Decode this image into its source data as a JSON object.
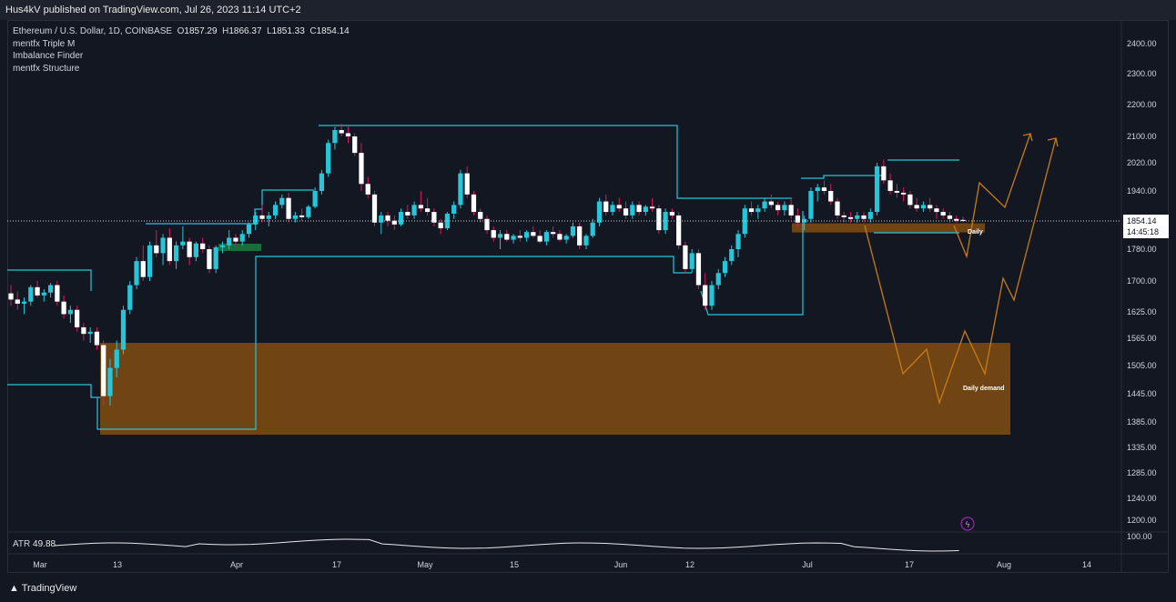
{
  "header": {
    "published": "Hus4kV published on TradingView.com, Jul 26, 2023 11:14 UTC+2"
  },
  "legend": {
    "symbol": "Ethereum / U.S. Dollar, 1D, COINBASE",
    "open_label": "O",
    "open": "1857.29",
    "high_label": "H",
    "high": "1866.37",
    "low_label": "L",
    "low": "1851.33",
    "close_label": "C",
    "close": "1854.14",
    "indicators": [
      "mentfx Triple M",
      "Imbalance Finder",
      "mentfx Structure"
    ]
  },
  "atr": {
    "label": "ATR",
    "value": "49.88"
  },
  "footer": {
    "brand": "TradingView"
  },
  "colors": {
    "bg": "#131722",
    "up": "#26c6da",
    "down": "#ffffff",
    "zone": "#7b4a12",
    "structure": "#26c6da",
    "projection": "#c77b16"
  },
  "chart_data": {
    "type": "candlestick",
    "y_ticks": [
      "2400.00",
      "2300.00",
      "2200.00",
      "2100.00",
      "2020.00",
      "1940.00",
      "1780.00",
      "1700.00",
      "1625.00",
      "1565.00",
      "1505.00",
      "1445.00",
      "1385.00",
      "1335.00",
      "1285.00",
      "1240.00",
      "1200.00"
    ],
    "atr_ticks": [
      "100.00"
    ],
    "x_ticks": [
      "Mar",
      "13",
      "Apr",
      "17",
      "May",
      "15",
      "Jun",
      "12",
      "Jul",
      "17",
      "Aug",
      "14"
    ],
    "last_price": "1854.14",
    "countdown": "14:45:18",
    "annotations": [
      "Daily",
      "Daily demand"
    ],
    "zones": [
      {
        "name": "Daily demand",
        "from": 1360,
        "to": 1555
      },
      {
        "name": "Daily",
        "from": 1824,
        "to": 1848
      }
    ],
    "candles_approx": [
      [
        1670,
        1690,
        1640,
        1655
      ],
      [
        1655,
        1675,
        1630,
        1645
      ],
      [
        1645,
        1660,
        1620,
        1650
      ],
      [
        1650,
        1690,
        1640,
        1685
      ],
      [
        1685,
        1700,
        1660,
        1665
      ],
      [
        1665,
        1680,
        1650,
        1672
      ],
      [
        1672,
        1695,
        1660,
        1690
      ],
      [
        1690,
        1700,
        1640,
        1650
      ],
      [
        1650,
        1665,
        1610,
        1620
      ],
      [
        1620,
        1640,
        1600,
        1630
      ],
      [
        1630,
        1640,
        1580,
        1590
      ],
      [
        1590,
        1600,
        1560,
        1575
      ],
      [
        1575,
        1590,
        1555,
        1580
      ],
      [
        1580,
        1590,
        1540,
        1550
      ],
      [
        1550,
        1560,
        1420,
        1440
      ],
      [
        1440,
        1520,
        1420,
        1500
      ],
      [
        1500,
        1560,
        1480,
        1540
      ],
      [
        1540,
        1640,
        1530,
        1630
      ],
      [
        1630,
        1700,
        1620,
        1690
      ],
      [
        1690,
        1760,
        1680,
        1750
      ],
      [
        1750,
        1790,
        1700,
        1710
      ],
      [
        1710,
        1800,
        1700,
        1790
      ],
      [
        1790,
        1830,
        1760,
        1770
      ],
      [
        1770,
        1820,
        1740,
        1810
      ],
      [
        1810,
        1835,
        1740,
        1750
      ],
      [
        1750,
        1800,
        1730,
        1790
      ],
      [
        1790,
        1840,
        1780,
        1800
      ],
      [
        1800,
        1810,
        1740,
        1760
      ],
      [
        1760,
        1800,
        1750,
        1795
      ],
      [
        1795,
        1810,
        1770,
        1780
      ],
      [
        1780,
        1790,
        1720,
        1730
      ],
      [
        1730,
        1790,
        1720,
        1785
      ],
      [
        1785,
        1800,
        1770,
        1790
      ],
      [
        1790,
        1830,
        1780,
        1810
      ],
      [
        1810,
        1820,
        1790,
        1800
      ],
      [
        1800,
        1830,
        1790,
        1820
      ],
      [
        1820,
        1850,
        1810,
        1845
      ],
      [
        1845,
        1880,
        1830,
        1870
      ],
      [
        1870,
        1900,
        1850,
        1860
      ],
      [
        1860,
        1880,
        1840,
        1870
      ],
      [
        1870,
        1910,
        1860,
        1900
      ],
      [
        1900,
        1930,
        1890,
        1920
      ],
      [
        1920,
        1935,
        1850,
        1860
      ],
      [
        1860,
        1880,
        1850,
        1870
      ],
      [
        1870,
        1890,
        1855,
        1865
      ],
      [
        1865,
        1900,
        1860,
        1895
      ],
      [
        1895,
        1950,
        1890,
        1940
      ],
      [
        1940,
        2000,
        1930,
        1990
      ],
      [
        1990,
        2090,
        1980,
        2080
      ],
      [
        2080,
        2130,
        2060,
        2120
      ],
      [
        2120,
        2140,
        2100,
        2110
      ],
      [
        2110,
        2130,
        2080,
        2100
      ],
      [
        2100,
        2110,
        2040,
        2050
      ],
      [
        2050,
        2080,
        1940,
        1960
      ],
      [
        1960,
        1980,
        1920,
        1930
      ],
      [
        1930,
        1940,
        1840,
        1850
      ],
      [
        1850,
        1880,
        1820,
        1870
      ],
      [
        1870,
        1880,
        1840,
        1855
      ],
      [
        1855,
        1870,
        1830,
        1845
      ],
      [
        1845,
        1890,
        1840,
        1880
      ],
      [
        1880,
        1900,
        1860,
        1870
      ],
      [
        1870,
        1910,
        1860,
        1900
      ],
      [
        1900,
        1940,
        1880,
        1890
      ],
      [
        1890,
        1920,
        1870,
        1880
      ],
      [
        1880,
        1890,
        1840,
        1850
      ],
      [
        1850,
        1860,
        1820,
        1835
      ],
      [
        1835,
        1880,
        1830,
        1875
      ],
      [
        1875,
        1910,
        1860,
        1900
      ],
      [
        1900,
        2000,
        1890,
        1990
      ],
      [
        1990,
        2010,
        1920,
        1930
      ],
      [
        1930,
        1940,
        1870,
        1880
      ],
      [
        1880,
        1890,
        1850,
        1860
      ],
      [
        1860,
        1870,
        1820,
        1830
      ],
      [
        1830,
        1840,
        1800,
        1810
      ],
      [
        1810,
        1830,
        1780,
        1820
      ],
      [
        1820,
        1830,
        1800,
        1805
      ],
      [
        1805,
        1820,
        1795,
        1815
      ],
      [
        1815,
        1830,
        1800,
        1810
      ],
      [
        1810,
        1830,
        1800,
        1825
      ],
      [
        1825,
        1840,
        1810,
        1815
      ],
      [
        1815,
        1830,
        1795,
        1800
      ],
      [
        1800,
        1830,
        1790,
        1825
      ],
      [
        1825,
        1840,
        1810,
        1820
      ],
      [
        1820,
        1830,
        1800,
        1805
      ],
      [
        1805,
        1820,
        1795,
        1815
      ],
      [
        1815,
        1850,
        1810,
        1840
      ],
      [
        1840,
        1850,
        1780,
        1790
      ],
      [
        1790,
        1820,
        1780,
        1815
      ],
      [
        1815,
        1860,
        1810,
        1850
      ],
      [
        1850,
        1920,
        1840,
        1910
      ],
      [
        1910,
        1930,
        1870,
        1880
      ],
      [
        1880,
        1910,
        1870,
        1900
      ],
      [
        1900,
        1920,
        1880,
        1890
      ],
      [
        1890,
        1910,
        1860,
        1870
      ],
      [
        1870,
        1910,
        1860,
        1900
      ],
      [
        1900,
        1910,
        1870,
        1880
      ],
      [
        1880,
        1900,
        1870,
        1895
      ],
      [
        1895,
        1920,
        1880,
        1890
      ],
      [
        1890,
        1900,
        1820,
        1830
      ],
      [
        1830,
        1890,
        1820,
        1880
      ],
      [
        1880,
        1890,
        1860,
        1870
      ],
      [
        1870,
        1880,
        1780,
        1790
      ],
      [
        1790,
        1800,
        1720,
        1730
      ],
      [
        1730,
        1780,
        1720,
        1770
      ],
      [
        1770,
        1780,
        1680,
        1690
      ],
      [
        1690,
        1720,
        1630,
        1640
      ],
      [
        1640,
        1700,
        1630,
        1690
      ],
      [
        1690,
        1730,
        1680,
        1720
      ],
      [
        1720,
        1760,
        1710,
        1750
      ],
      [
        1750,
        1790,
        1740,
        1780
      ],
      [
        1780,
        1830,
        1760,
        1820
      ],
      [
        1820,
        1900,
        1810,
        1890
      ],
      [
        1890,
        1910,
        1870,
        1880
      ],
      [
        1880,
        1900,
        1860,
        1890
      ],
      [
        1890,
        1920,
        1880,
        1910
      ],
      [
        1910,
        1930,
        1890,
        1900
      ],
      [
        1900,
        1910,
        1870,
        1885
      ],
      [
        1885,
        1910,
        1870,
        1900
      ],
      [
        1900,
        1920,
        1860,
        1870
      ],
      [
        1870,
        1890,
        1840,
        1850
      ],
      [
        1850,
        1870,
        1830,
        1860
      ],
      [
        1860,
        1950,
        1850,
        1940
      ],
      [
        1940,
        1960,
        1910,
        1950
      ],
      [
        1950,
        1970,
        1930,
        1940
      ],
      [
        1940,
        1960,
        1900,
        1910
      ],
      [
        1910,
        1920,
        1860,
        1870
      ],
      [
        1870,
        1880,
        1850,
        1865
      ],
      [
        1865,
        1880,
        1850,
        1860
      ],
      [
        1860,
        1880,
        1850,
        1870
      ],
      [
        1870,
        1880,
        1850,
        1860
      ],
      [
        1860,
        1890,
        1850,
        1880
      ],
      [
        1880,
        2020,
        1870,
        2010
      ],
      [
        2010,
        2030,
        1960,
        1970
      ],
      [
        1970,
        1990,
        1930,
        1940
      ],
      [
        1940,
        1960,
        1920,
        1935
      ],
      [
        1935,
        1950,
        1910,
        1930
      ],
      [
        1930,
        1940,
        1890,
        1900
      ],
      [
        1900,
        1920,
        1880,
        1890
      ],
      [
        1890,
        1910,
        1880,
        1900
      ],
      [
        1900,
        1920,
        1880,
        1890
      ],
      [
        1890,
        1900,
        1860,
        1880
      ],
      [
        1880,
        1890,
        1860,
        1870
      ],
      [
        1870,
        1880,
        1850,
        1860
      ],
      [
        1860,
        1870,
        1850,
        1855
      ],
      [
        1857.29,
        1866.37,
        1851.33,
        1854.14
      ]
    ]
  }
}
